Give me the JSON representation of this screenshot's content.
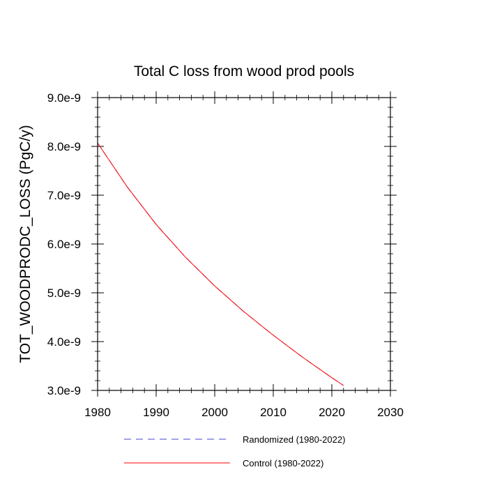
{
  "chart_data": {
    "type": "line",
    "title": "Total C loss from wood prod pools",
    "ylabel": "TOT_WOODPRODC_LOSS  (PgC/y)",
    "xlabel": "",
    "xlim": [
      1980,
      2030
    ],
    "ylim": [
      3e-09,
      9e-09
    ],
    "xticks": [
      1980,
      1990,
      2000,
      2010,
      2020,
      2030
    ],
    "xtick_labels": [
      "1980",
      "1990",
      "2000",
      "2010",
      "2020",
      "2030"
    ],
    "yticks": [
      3e-09,
      4e-09,
      5e-09,
      6e-09,
      7e-09,
      8e-09,
      9e-09
    ],
    "ytick_labels": [
      "3.0e-9",
      "4.0e-9",
      "5.0e-9",
      "6.0e-9",
      "7.0e-9",
      "8.0e-9",
      "9.0e-9"
    ],
    "grid": false,
    "legend_position": "bottom",
    "x": [
      1980,
      1985,
      1990,
      1995,
      2000,
      2005,
      2010,
      2015,
      2020,
      2022
    ],
    "series": [
      {
        "name": "Randomized (1980-2022)",
        "color": "#4444cc",
        "style": "dashed",
        "values": [
          8.07e-09,
          7.18e-09,
          6.4e-09,
          5.73e-09,
          5.14e-09,
          4.61e-09,
          4.13e-09,
          3.68e-09,
          3.26e-09,
          3.1e-09
        ]
      },
      {
        "name": "Control (1980-2022)",
        "color": "#ff0000",
        "style": "solid",
        "values": [
          8.07e-09,
          7.18e-09,
          6.4e-09,
          5.73e-09,
          5.14e-09,
          4.61e-09,
          4.13e-09,
          3.68e-09,
          3.26e-09,
          3.1e-09
        ]
      }
    ]
  }
}
